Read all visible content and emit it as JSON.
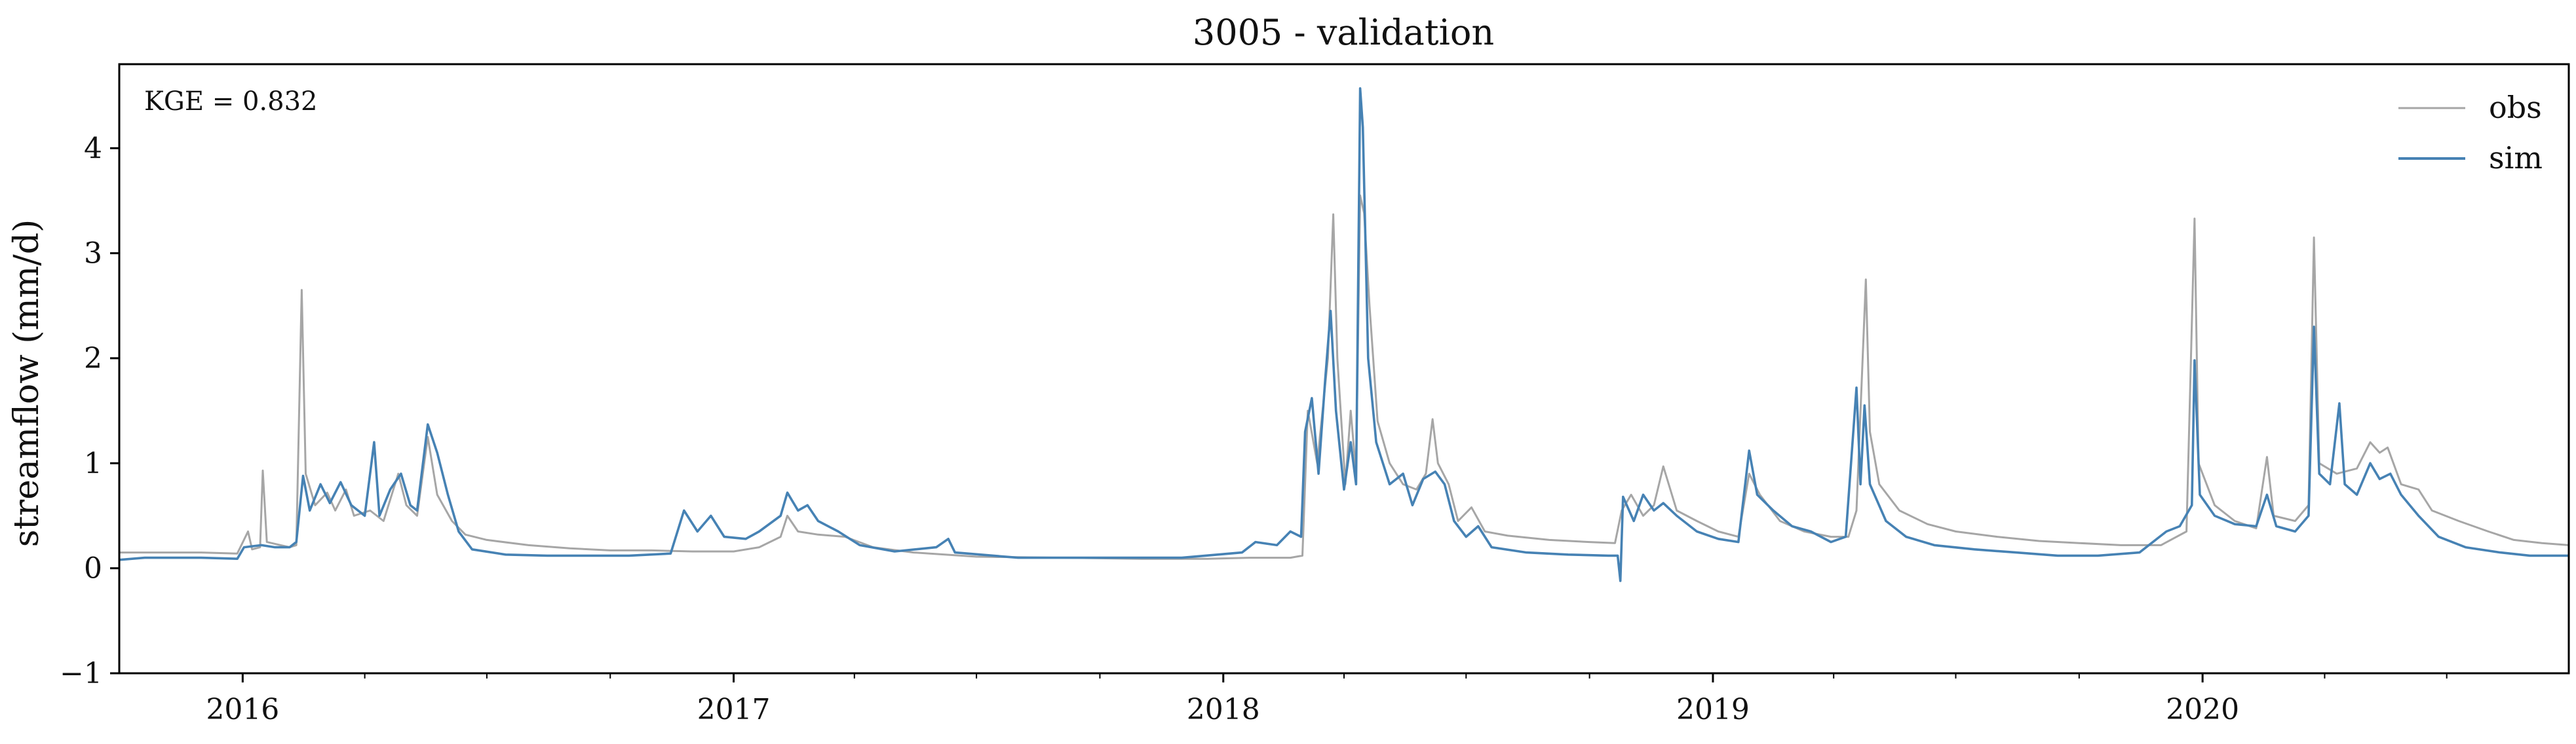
{
  "chart_data": {
    "type": "line",
    "title": "3005 - validation",
    "xlabel": "",
    "ylabel": "streamflow (mm/d)",
    "annotation": "KGE = 0.832",
    "xlim": [
      "2015-10-01",
      "2020-09-30"
    ],
    "ylim": [
      -1,
      4.8
    ],
    "y_ticks": [
      -1,
      0,
      1,
      2,
      3,
      4
    ],
    "y_tick_labels": [
      "−1",
      "0",
      "1",
      "2",
      "3",
      "4"
    ],
    "x_major_ticks": [
      "2016-01-01",
      "2017-01-01",
      "2018-01-01",
      "2019-01-01",
      "2020-01-01"
    ],
    "x_tick_labels": [
      "2016",
      "2017",
      "2018",
      "2019",
      "2020"
    ],
    "x_minor_ticks": [
      "2016-04-01",
      "2016-07-01",
      "2016-10-01",
      "2017-04-01",
      "2017-07-01",
      "2017-10-01",
      "2018-04-01",
      "2018-07-01",
      "2018-10-01",
      "2019-04-01",
      "2019-07-01",
      "2019-10-01",
      "2020-04-01",
      "2020-07-01"
    ],
    "grid": false,
    "legend_position": "top-right",
    "series": [
      {
        "name": "obs",
        "color": "#a6a6a6",
        "points": [
          [
            "2015-10-01",
            0.15
          ],
          [
            "2015-12-01",
            0.15
          ],
          [
            "2015-12-28",
            0.14
          ],
          [
            "2016-01-05",
            0.35
          ],
          [
            "2016-01-08",
            0.18
          ],
          [
            "2016-01-14",
            0.2
          ],
          [
            "2016-01-16",
            0.93
          ],
          [
            "2016-01-19",
            0.25
          ],
          [
            "2016-02-05",
            0.2
          ],
          [
            "2016-02-10",
            0.22
          ],
          [
            "2016-02-14",
            2.65
          ],
          [
            "2016-02-17",
            0.9
          ],
          [
            "2016-02-24",
            0.6
          ],
          [
            "2016-03-04",
            0.72
          ],
          [
            "2016-03-10",
            0.55
          ],
          [
            "2016-03-18",
            0.75
          ],
          [
            "2016-03-24",
            0.5
          ],
          [
            "2016-04-05",
            0.55
          ],
          [
            "2016-04-15",
            0.45
          ],
          [
            "2016-04-26",
            0.9
          ],
          [
            "2016-05-02",
            0.6
          ],
          [
            "2016-05-10",
            0.5
          ],
          [
            "2016-05-18",
            1.25
          ],
          [
            "2016-05-25",
            0.7
          ],
          [
            "2016-06-05",
            0.45
          ],
          [
            "2016-06-15",
            0.32
          ],
          [
            "2016-07-01",
            0.27
          ],
          [
            "2016-08-01",
            0.22
          ],
          [
            "2016-09-01",
            0.19
          ],
          [
            "2016-10-01",
            0.17
          ],
          [
            "2016-11-01",
            0.17
          ],
          [
            "2016-12-01",
            0.16
          ],
          [
            "2017-01-01",
            0.16
          ],
          [
            "2017-01-20",
            0.2
          ],
          [
            "2017-02-05",
            0.3
          ],
          [
            "2017-02-10",
            0.5
          ],
          [
            "2017-02-18",
            0.35
          ],
          [
            "2017-03-05",
            0.32
          ],
          [
            "2017-03-25",
            0.3
          ],
          [
            "2017-04-15",
            0.2
          ],
          [
            "2017-05-15",
            0.15
          ],
          [
            "2017-07-01",
            0.11
          ],
          [
            "2017-09-01",
            0.1
          ],
          [
            "2017-11-01",
            0.09
          ],
          [
            "2017-12-20",
            0.09
          ],
          [
            "2018-01-20",
            0.1
          ],
          [
            "2018-02-20",
            0.1
          ],
          [
            "2018-03-01",
            0.12
          ],
          [
            "2018-03-05",
            1.5
          ],
          [
            "2018-03-12",
            1.0
          ],
          [
            "2018-03-20",
            2.0
          ],
          [
            "2018-03-24",
            3.37
          ],
          [
            "2018-03-27",
            2.0
          ],
          [
            "2018-04-02",
            0.8
          ],
          [
            "2018-04-06",
            1.5
          ],
          [
            "2018-04-10",
            0.9
          ],
          [
            "2018-04-13",
            3.55
          ],
          [
            "2018-04-16",
            3.38
          ],
          [
            "2018-04-20",
            2.5
          ],
          [
            "2018-04-26",
            1.4
          ],
          [
            "2018-05-05",
            1.0
          ],
          [
            "2018-05-15",
            0.8
          ],
          [
            "2018-05-25",
            0.75
          ],
          [
            "2018-06-01",
            0.9
          ],
          [
            "2018-06-06",
            1.42
          ],
          [
            "2018-06-10",
            1.0
          ],
          [
            "2018-06-18",
            0.8
          ],
          [
            "2018-06-25",
            0.45
          ],
          [
            "2018-07-05",
            0.58
          ],
          [
            "2018-07-15",
            0.35
          ],
          [
            "2018-08-01",
            0.31
          ],
          [
            "2018-09-01",
            0.27
          ],
          [
            "2018-10-01",
            0.25
          ],
          [
            "2018-10-20",
            0.24
          ],
          [
            "2018-10-25",
            0.55
          ],
          [
            "2018-11-01",
            0.7
          ],
          [
            "2018-11-10",
            0.5
          ],
          [
            "2018-11-18",
            0.6
          ],
          [
            "2018-11-25",
            0.97
          ],
          [
            "2018-12-05",
            0.55
          ],
          [
            "2018-12-20",
            0.45
          ],
          [
            "2019-01-05",
            0.35
          ],
          [
            "2019-01-20",
            0.3
          ],
          [
            "2019-01-28",
            0.9
          ],
          [
            "2019-02-05",
            0.7
          ],
          [
            "2019-02-20",
            0.45
          ],
          [
            "2019-03-10",
            0.35
          ],
          [
            "2019-03-30",
            0.3
          ],
          [
            "2019-04-12",
            0.3
          ],
          [
            "2019-04-18",
            0.55
          ],
          [
            "2019-04-25",
            2.75
          ],
          [
            "2019-04-28",
            1.3
          ],
          [
            "2019-05-05",
            0.8
          ],
          [
            "2019-05-20",
            0.55
          ],
          [
            "2019-06-10",
            0.42
          ],
          [
            "2019-07-01",
            0.35
          ],
          [
            "2019-08-01",
            0.3
          ],
          [
            "2019-09-01",
            0.26
          ],
          [
            "2019-10-01",
            0.24
          ],
          [
            "2019-11-01",
            0.22
          ],
          [
            "2019-12-01",
            0.22
          ],
          [
            "2019-12-20",
            0.35
          ],
          [
            "2019-12-26",
            3.33
          ],
          [
            "2019-12-29",
            1.0
          ],
          [
            "2020-01-10",
            0.6
          ],
          [
            "2020-01-25",
            0.45
          ],
          [
            "2020-02-10",
            0.38
          ],
          [
            "2020-02-18",
            1.06
          ],
          [
            "2020-02-23",
            0.5
          ],
          [
            "2020-03-10",
            0.45
          ],
          [
            "2020-03-20",
            0.6
          ],
          [
            "2020-03-24",
            3.15
          ],
          [
            "2020-03-28",
            1.0
          ],
          [
            "2020-04-10",
            0.9
          ],
          [
            "2020-04-25",
            0.95
          ],
          [
            "2020-05-05",
            1.2
          ],
          [
            "2020-05-12",
            1.1
          ],
          [
            "2020-05-18",
            1.15
          ],
          [
            "2020-05-28",
            0.8
          ],
          [
            "2020-06-10",
            0.75
          ],
          [
            "2020-06-20",
            0.55
          ],
          [
            "2020-07-10",
            0.45
          ],
          [
            "2020-08-01",
            0.35
          ],
          [
            "2020-08-20",
            0.27
          ],
          [
            "2020-09-10",
            0.24
          ],
          [
            "2020-09-30",
            0.22
          ]
        ]
      },
      {
        "name": "sim",
        "color": "#4682b4",
        "points": [
          [
            "2015-10-01",
            0.08
          ],
          [
            "2015-10-20",
            0.1
          ],
          [
            "2015-12-01",
            0.1
          ],
          [
            "2015-12-28",
            0.09
          ],
          [
            "2016-01-02",
            0.2
          ],
          [
            "2016-01-15",
            0.22
          ],
          [
            "2016-01-25",
            0.2
          ],
          [
            "2016-02-05",
            0.2
          ],
          [
            "2016-02-10",
            0.25
          ],
          [
            "2016-02-15",
            0.88
          ],
          [
            "2016-02-20",
            0.55
          ],
          [
            "2016-02-28",
            0.8
          ],
          [
            "2016-03-06",
            0.62
          ],
          [
            "2016-03-14",
            0.82
          ],
          [
            "2016-03-22",
            0.6
          ],
          [
            "2016-04-01",
            0.5
          ],
          [
            "2016-04-08",
            1.2
          ],
          [
            "2016-04-12",
            0.5
          ],
          [
            "2016-04-20",
            0.75
          ],
          [
            "2016-04-28",
            0.9
          ],
          [
            "2016-05-05",
            0.6
          ],
          [
            "2016-05-10",
            0.55
          ],
          [
            "2016-05-18",
            1.37
          ],
          [
            "2016-05-25",
            1.1
          ],
          [
            "2016-06-02",
            0.7
          ],
          [
            "2016-06-10",
            0.35
          ],
          [
            "2016-06-20",
            0.18
          ],
          [
            "2016-07-15",
            0.13
          ],
          [
            "2016-08-15",
            0.12
          ],
          [
            "2016-09-15",
            0.12
          ],
          [
            "2016-10-15",
            0.12
          ],
          [
            "2016-11-15",
            0.14
          ],
          [
            "2016-11-25",
            0.55
          ],
          [
            "2016-12-05",
            0.35
          ],
          [
            "2016-12-15",
            0.5
          ],
          [
            "2016-12-25",
            0.3
          ],
          [
            "2017-01-10",
            0.28
          ],
          [
            "2017-01-20",
            0.35
          ],
          [
            "2017-02-05",
            0.5
          ],
          [
            "2017-02-10",
            0.72
          ],
          [
            "2017-02-18",
            0.55
          ],
          [
            "2017-02-25",
            0.6
          ],
          [
            "2017-03-05",
            0.45
          ],
          [
            "2017-03-20",
            0.35
          ],
          [
            "2017-04-05",
            0.22
          ],
          [
            "2017-05-01",
            0.16
          ],
          [
            "2017-06-01",
            0.2
          ],
          [
            "2017-06-10",
            0.28
          ],
          [
            "2017-06-15",
            0.15
          ],
          [
            "2017-08-01",
            0.1
          ],
          [
            "2017-10-01",
            0.1
          ],
          [
            "2017-12-01",
            0.1
          ],
          [
            "2018-01-15",
            0.15
          ],
          [
            "2018-01-25",
            0.25
          ],
          [
            "2018-02-10",
            0.22
          ],
          [
            "2018-02-20",
            0.35
          ],
          [
            "2018-02-28",
            0.3
          ],
          [
            "2018-03-03",
            1.3
          ],
          [
            "2018-03-08",
            1.62
          ],
          [
            "2018-03-13",
            0.9
          ],
          [
            "2018-03-18",
            1.8
          ],
          [
            "2018-03-22",
            2.45
          ],
          [
            "2018-03-26",
            1.5
          ],
          [
            "2018-04-01",
            0.75
          ],
          [
            "2018-04-06",
            1.2
          ],
          [
            "2018-04-10",
            0.8
          ],
          [
            "2018-04-13",
            4.57
          ],
          [
            "2018-04-15",
            4.2
          ],
          [
            "2018-04-19",
            2.0
          ],
          [
            "2018-04-25",
            1.2
          ],
          [
            "2018-05-05",
            0.8
          ],
          [
            "2018-05-15",
            0.9
          ],
          [
            "2018-05-22",
            0.6
          ],
          [
            "2018-05-30",
            0.85
          ],
          [
            "2018-06-08",
            0.92
          ],
          [
            "2018-06-15",
            0.8
          ],
          [
            "2018-06-22",
            0.45
          ],
          [
            "2018-07-01",
            0.3
          ],
          [
            "2018-07-10",
            0.4
          ],
          [
            "2018-07-20",
            0.2
          ],
          [
            "2018-08-15",
            0.15
          ],
          [
            "2018-09-15",
            0.13
          ],
          [
            "2018-10-15",
            0.12
          ],
          [
            "2018-10-22",
            0.12
          ],
          [
            "2018-10-24",
            -0.12
          ],
          [
            "2018-10-26",
            0.68
          ],
          [
            "2018-11-03",
            0.45
          ],
          [
            "2018-11-10",
            0.7
          ],
          [
            "2018-11-18",
            0.55
          ],
          [
            "2018-11-25",
            0.62
          ],
          [
            "2018-12-05",
            0.5
          ],
          [
            "2018-12-20",
            0.35
          ],
          [
            "2019-01-05",
            0.28
          ],
          [
            "2019-01-20",
            0.25
          ],
          [
            "2019-01-28",
            1.12
          ],
          [
            "2019-02-03",
            0.7
          ],
          [
            "2019-02-15",
            0.55
          ],
          [
            "2019-03-01",
            0.4
          ],
          [
            "2019-03-15",
            0.35
          ],
          [
            "2019-03-30",
            0.25
          ],
          [
            "2019-04-10",
            0.3
          ],
          [
            "2019-04-18",
            1.72
          ],
          [
            "2019-04-21",
            0.8
          ],
          [
            "2019-04-24",
            1.55
          ],
          [
            "2019-04-28",
            0.8
          ],
          [
            "2019-05-10",
            0.45
          ],
          [
            "2019-05-25",
            0.3
          ],
          [
            "2019-06-15",
            0.22
          ],
          [
            "2019-07-15",
            0.18
          ],
          [
            "2019-08-15",
            0.15
          ],
          [
            "2019-09-15",
            0.12
          ],
          [
            "2019-10-15",
            0.12
          ],
          [
            "2019-11-15",
            0.15
          ],
          [
            "2019-12-05",
            0.35
          ],
          [
            "2019-12-15",
            0.4
          ],
          [
            "2019-12-24",
            0.6
          ],
          [
            "2019-12-26",
            1.98
          ],
          [
            "2019-12-30",
            0.7
          ],
          [
            "2020-01-10",
            0.5
          ],
          [
            "2020-01-25",
            0.42
          ],
          [
            "2020-02-10",
            0.4
          ],
          [
            "2020-02-18",
            0.7
          ],
          [
            "2020-02-25",
            0.4
          ],
          [
            "2020-03-10",
            0.35
          ],
          [
            "2020-03-20",
            0.5
          ],
          [
            "2020-03-24",
            2.3
          ],
          [
            "2020-03-28",
            0.9
          ],
          [
            "2020-04-05",
            0.8
          ],
          [
            "2020-04-12",
            1.57
          ],
          [
            "2020-04-16",
            0.8
          ],
          [
            "2020-04-25",
            0.7
          ],
          [
            "2020-05-05",
            1.0
          ],
          [
            "2020-05-12",
            0.85
          ],
          [
            "2020-05-20",
            0.9
          ],
          [
            "2020-05-28",
            0.7
          ],
          [
            "2020-06-10",
            0.5
          ],
          [
            "2020-06-25",
            0.3
          ],
          [
            "2020-07-15",
            0.2
          ],
          [
            "2020-08-10",
            0.15
          ],
          [
            "2020-09-01",
            0.12
          ],
          [
            "2020-09-30",
            0.12
          ]
        ]
      }
    ]
  }
}
